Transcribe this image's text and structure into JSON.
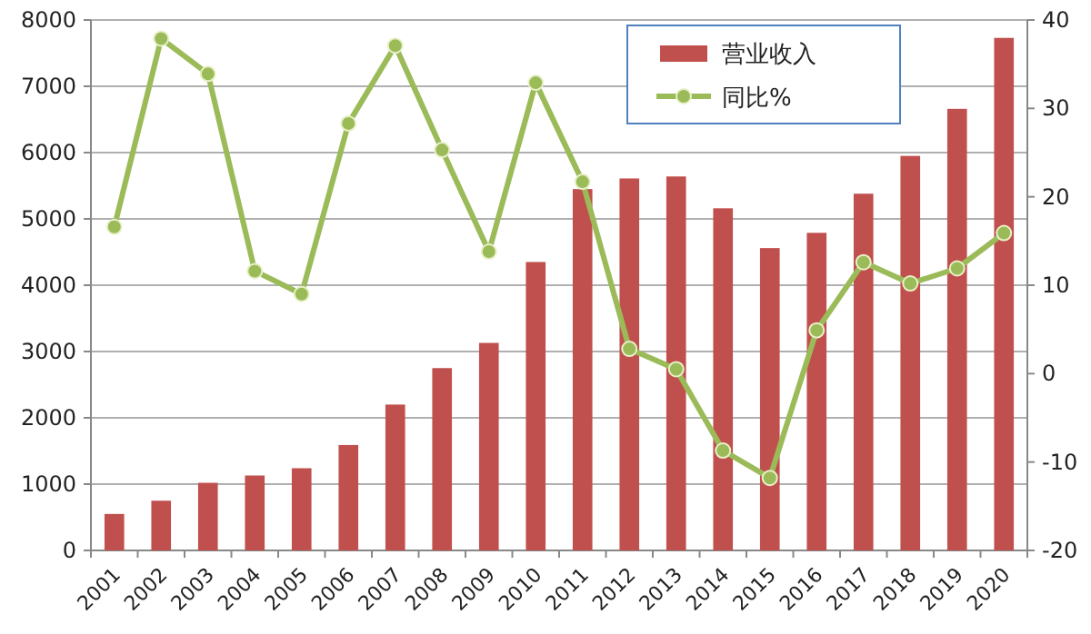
{
  "chart_data": {
    "type": "bar",
    "categories": [
      "2001",
      "2002",
      "2003",
      "2004",
      "2005",
      "2006",
      "2007",
      "2008",
      "2009",
      "2010",
      "2011",
      "2012",
      "2013",
      "2014",
      "2015",
      "2016",
      "2017",
      "2018",
      "2019",
      "2020"
    ],
    "series": [
      {
        "name": "营业收入",
        "color": "#c0504d",
        "values": [
          550,
          750,
          1020,
          1130,
          1240,
          1590,
          2200,
          2750,
          3130,
          4350,
          5450,
          5610,
          5640,
          5160,
          4560,
          4790,
          5380,
          5950,
          6660,
          7730
        ]
      },
      {
        "name": "同比%",
        "type": "line",
        "axis": "y2",
        "color": "#9bbb59",
        "marker": "circle",
        "values": [
          16.6,
          37.9,
          33.9,
          11.6,
          9.0,
          28.3,
          37.1,
          25.3,
          13.8,
          32.9,
          21.7,
          2.8,
          0.5,
          -8.7,
          -11.8,
          4.9,
          12.6,
          10.2,
          11.9,
          15.9
        ]
      }
    ],
    "ylim": [
      0,
      8000
    ],
    "yticks": [
      0,
      1000,
      2000,
      3000,
      4000,
      5000,
      6000,
      7000,
      8000
    ],
    "y2lim": [
      -20,
      40
    ],
    "y2ticks": [
      -20,
      -10,
      0,
      10,
      20,
      30,
      40
    ],
    "grid": "y",
    "legend": "top"
  }
}
